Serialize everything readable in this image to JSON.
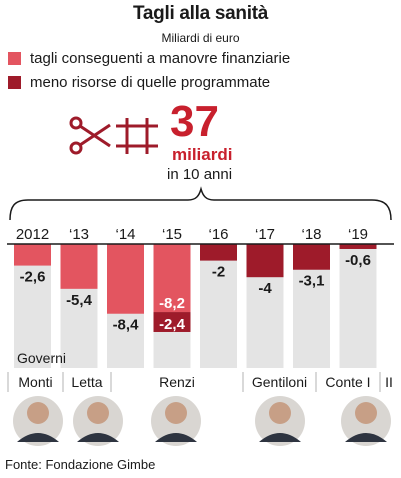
{
  "title": "Tagli alla sanità",
  "subtitle": "Miliardi di euro",
  "legend": [
    {
      "label": "tagli conseguenti a manovre finanziarie",
      "color": "#e35560"
    },
    {
      "label": "meno risorse di quelle programmate",
      "color": "#9e1b2a"
    }
  ],
  "headline": {
    "value": "37",
    "unit": "miliardi",
    "period": "in 10 anni",
    "icon": "scissors-icon"
  },
  "colors": {
    "background_bar": "#e4e4e4",
    "accent": "#c8202d"
  },
  "chart_data": {
    "type": "bar",
    "categories": [
      "2012",
      "‘13",
      "‘14",
      "‘15",
      "‘16",
      "‘17",
      "‘18",
      "‘19"
    ],
    "series": [
      {
        "name": "tagli conseguenti a manovre finanziarie",
        "values": [
          -2.6,
          -5.4,
          -8.4,
          -8.2,
          0,
          0,
          0,
          0
        ]
      },
      {
        "name": "meno risorse di quelle programmate",
        "values": [
          0,
          0,
          0,
          -2.4,
          -2,
          -4,
          -3.1,
          -0.6
        ]
      }
    ],
    "data_labels": [
      "-2,6",
      "-5,4",
      "-8,4",
      "-8,2",
      "-2,4",
      "-2",
      "-4",
      "-3,1",
      "-0,6"
    ]
  },
  "governments_label": "Governi",
  "governments": [
    {
      "name": "Monti"
    },
    {
      "name": "Letta"
    },
    {
      "name": "Renzi"
    },
    {
      "name": "Gentiloni"
    },
    {
      "name": "Conte I"
    },
    {
      "name": "II"
    }
  ],
  "source": "Fonte: Fondazione Gimbe"
}
